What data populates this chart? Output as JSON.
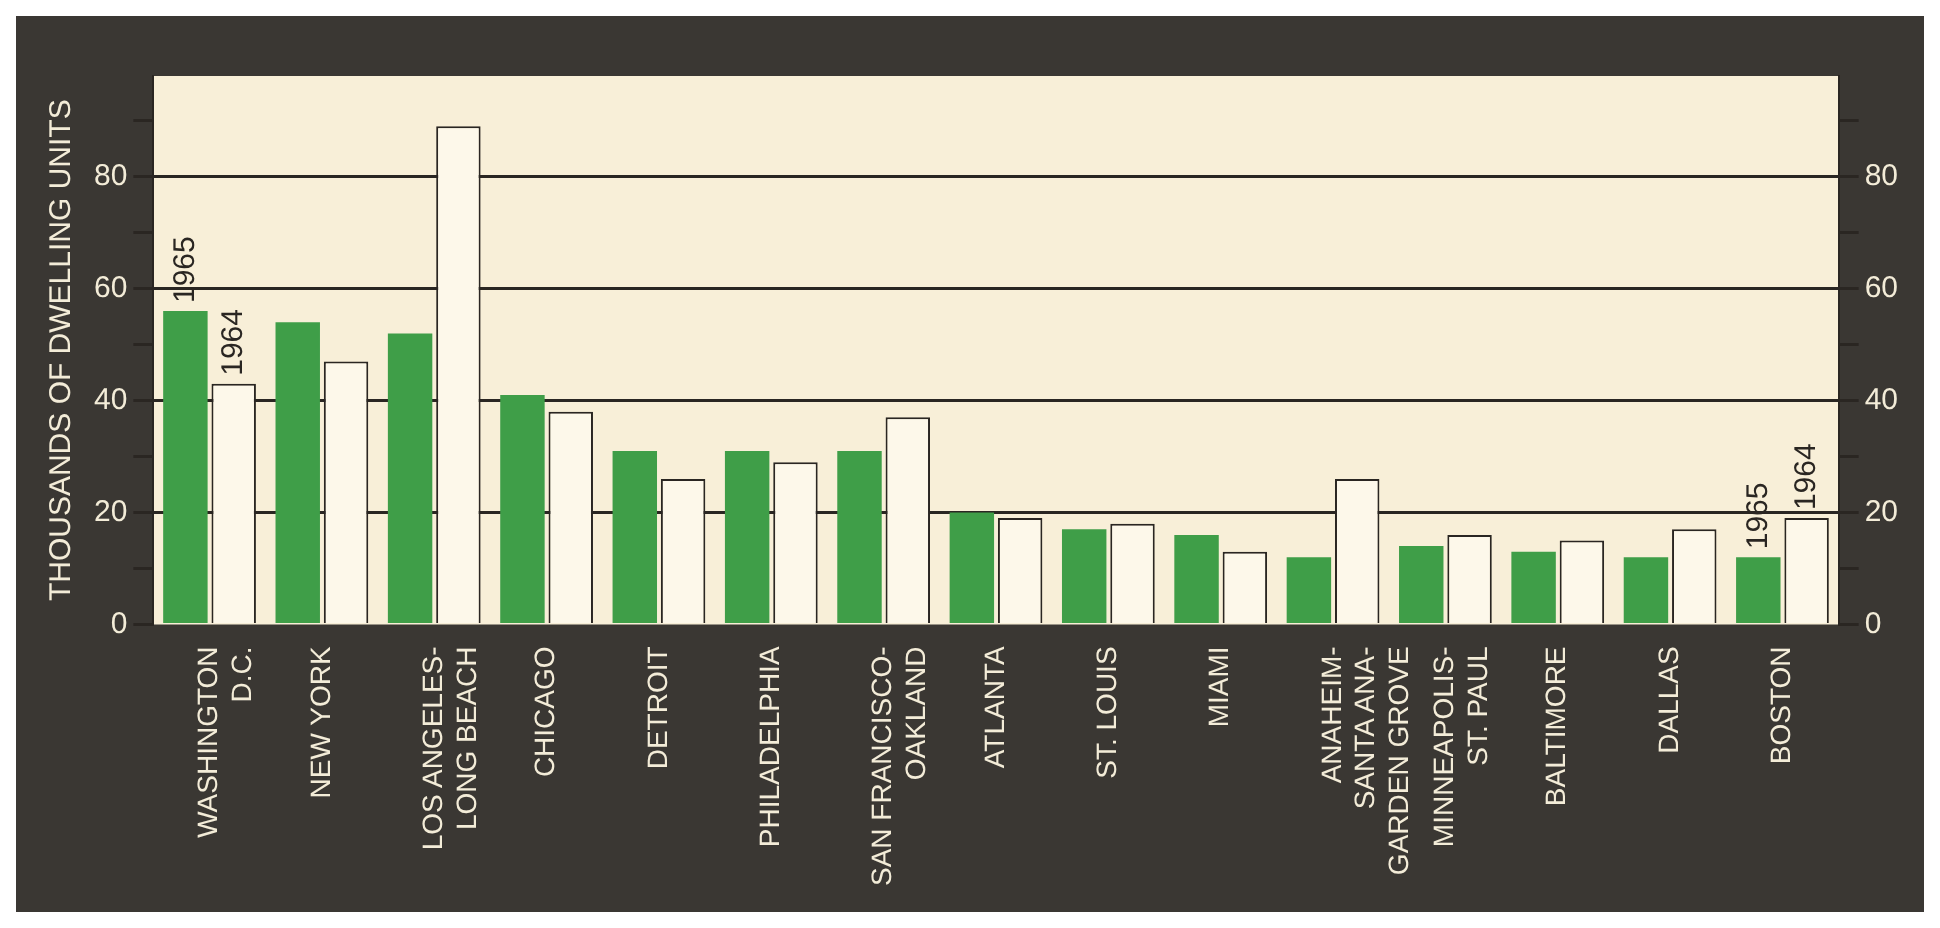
{
  "chart_data": {
    "type": "bar",
    "ylabel": "THOUSANDS OF DWELLING UNITS",
    "categories": [
      "WASHINGTON\nD.C.",
      "NEW YORK",
      "LOS ANGELES-\nLONG BEACH",
      "CHICAGO",
      "DETROIT",
      "PHILADELPHIA",
      "SAN FRANCISCO-\nOAKLAND",
      "ATLANTA",
      "ST. LOUIS",
      "MIAMI",
      "ANAHEIM-\nSANTA ANA-\nGARDEN GROVE",
      "MINNEAPOLIS-\nST. PAUL",
      "BALTIMORE",
      "DALLAS",
      "BOSTON"
    ],
    "series": [
      {
        "name": "1965",
        "color": "#3f9e48",
        "values": [
          56,
          54,
          52,
          41,
          31,
          31,
          31,
          20,
          17,
          16,
          12,
          14,
          13,
          12,
          12
        ]
      },
      {
        "name": "1964",
        "color": "#fdf8ea",
        "values": [
          43,
          47,
          89,
          38,
          26,
          29,
          37,
          19,
          18,
          13,
          26,
          16,
          15,
          17,
          19
        ]
      }
    ],
    "ylim": [
      0,
      98
    ],
    "yticks": [
      0,
      {
        "value": 10,
        "label": null
      },
      20,
      {
        "value": 30,
        "label": null
      },
      40,
      {
        "value": 50,
        "label": null
      },
      60,
      {
        "value": 70,
        "label": null
      },
      80,
      {
        "value": 90,
        "label": null
      }
    ],
    "y2lim": [
      0,
      98
    ],
    "y2ticks": [
      0,
      {
        "value": 10,
        "label": null
      },
      20,
      {
        "value": 30,
        "label": null
      },
      40,
      {
        "value": 50,
        "label": null
      },
      60,
      {
        "value": 70,
        "label": null
      },
      80,
      {
        "value": 90,
        "label": null
      }
    ],
    "grid": "y",
    "legend": false
  }
}
